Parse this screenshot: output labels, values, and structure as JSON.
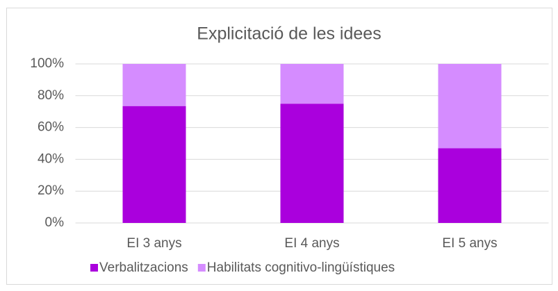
{
  "chart_data": {
    "type": "stacked_bar",
    "title": "Explicitació de les idees",
    "categories": [
      "EI 3 anys",
      "EI 4 anys",
      "EI 5 anys"
    ],
    "series": [
      {
        "name": "Verbalitzacions",
        "color": "#aa00dd",
        "values": [
          73.5,
          75,
          47
        ]
      },
      {
        "name": "Habilitats cognitivo-lingüístiques",
        "color": "#d58cff",
        "values": [
          26.5,
          25,
          53
        ]
      }
    ],
    "ylim": [
      0,
      100
    ],
    "yticks": [
      {
        "value": 0,
        "label": "0%"
      },
      {
        "value": 20,
        "label": "20%"
      },
      {
        "value": 40,
        "label": "40%"
      },
      {
        "value": 60,
        "label": "60%"
      },
      {
        "value": 80,
        "label": "80%"
      },
      {
        "value": 100,
        "label": "100%"
      }
    ],
    "grid": true,
    "legend": "bottom"
  }
}
